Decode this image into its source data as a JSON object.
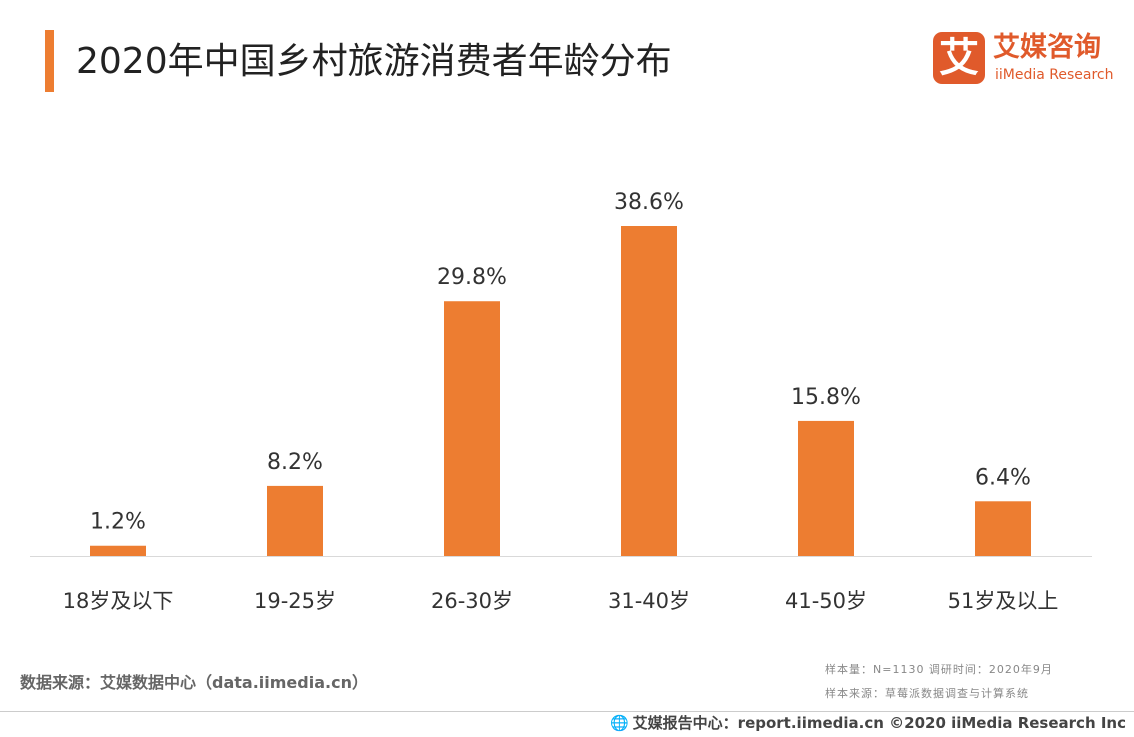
{
  "title": "2020年中国乡村旅游消费者年龄分布",
  "logo": {
    "mark": "艾",
    "name_cn": "艾媒咨询",
    "name_en": "iiMedia Research"
  },
  "colors": {
    "accent": "#ED7D31",
    "logo_red": "#E05A2B",
    "axis": "#D9D9D9"
  },
  "chart_data": {
    "type": "bar",
    "title": "2020年中国乡村旅游消费者年龄分布",
    "categories": [
      "18岁及以下",
      "19-25岁",
      "26-30岁",
      "31-40岁",
      "41-50岁",
      "51岁及以上"
    ],
    "values": [
      1.2,
      8.2,
      29.8,
      38.6,
      15.8,
      6.4
    ],
    "value_labels": [
      "1.2%",
      "8.2%",
      "29.8%",
      "38.6%",
      "15.8%",
      "6.4%"
    ],
    "unit": "%",
    "xlabel": "",
    "ylabel": "",
    "ylim": [
      0,
      40
    ],
    "grid": false,
    "legend": "none"
  },
  "source": "数据来源：艾媒数据中心（data.iimedia.cn）",
  "meta": {
    "line1": "样本量：N=1130    调研时间：2020年9月",
    "line2": "样本来源：草莓派数据调查与计算系统"
  },
  "footer": {
    "icon": "globe-icon",
    "text": "艾媒报告中心：report.iimedia.cn  ©2020  iiMedia Research  Inc"
  }
}
